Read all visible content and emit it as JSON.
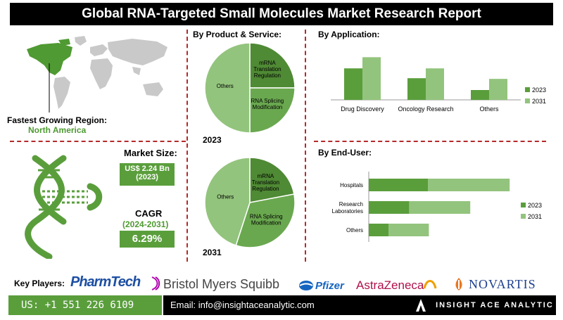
{
  "title": "Global RNA-Targeted Small Molecules Market Research Report",
  "region": {
    "label": "Fastest Growing Region:",
    "value": "North America"
  },
  "market_size": {
    "label": "Market Size:",
    "value_line1": "US$ 2.24 Bn",
    "value_line2": "(2023)"
  },
  "cagr": {
    "label": "CAGR",
    "period": "(2024-2031)",
    "value": "6.29%"
  },
  "sections": {
    "product": "By Product & Service:",
    "application": "By Application:",
    "end_user": "By End-User:"
  },
  "key_players": {
    "label": "Key Players:",
    "names": [
      "PharmTech",
      "Bristol Myers Squibb",
      "Pfizer",
      "AstraZeneca",
      "NOVARTIS"
    ]
  },
  "footer": {
    "phone": "US: +1 551 226 6109",
    "email": "Email: info@insightaceanalytic.com",
    "brand": "INSIGHT ACE ANALYTIC"
  },
  "colors": {
    "dark_green": "#5a9e3c",
    "light_green": "#93c47d",
    "mid_green": "#8fbe6b",
    "accent_red": "#b52a2a"
  },
  "chart_data": [
    {
      "type": "pie",
      "title": "2023",
      "labels": [
        "mRNA Translation Regulation",
        "RNA Splicing Modification",
        "Others"
      ],
      "values": [
        25,
        25,
        50
      ],
      "colors": [
        "#4f8a34",
        "#6aa84f",
        "#93c47d"
      ]
    },
    {
      "type": "pie",
      "title": "2031",
      "labels": [
        "mRNA Translation Regulation",
        "RNA Splicing Modification",
        "Others"
      ],
      "values": [
        22,
        33,
        45
      ],
      "colors": [
        "#4f8a34",
        "#6aa84f",
        "#93c47d"
      ]
    },
    {
      "type": "bar",
      "categories": [
        "Drug Discovery",
        "Oncology Research",
        "Others"
      ],
      "series": [
        {
          "name": "2023",
          "values": [
            48,
            33,
            15
          ]
        },
        {
          "name": "2031",
          "values": [
            65,
            48,
            32
          ]
        }
      ],
      "ylim": [
        0,
        75
      ],
      "legend": "right"
    },
    {
      "type": "bar",
      "orientation": "horizontal",
      "stacked": true,
      "categories": [
        "Hospitals",
        "Research Laboratories",
        "Others"
      ],
      "series": [
        {
          "name": "2023",
          "values": [
            60,
            41,
            20
          ]
        },
        {
          "name": "2031",
          "values": [
            83,
            62,
            41
          ]
        }
      ],
      "xlim": [
        0,
        150
      ],
      "legend": "right"
    }
  ]
}
